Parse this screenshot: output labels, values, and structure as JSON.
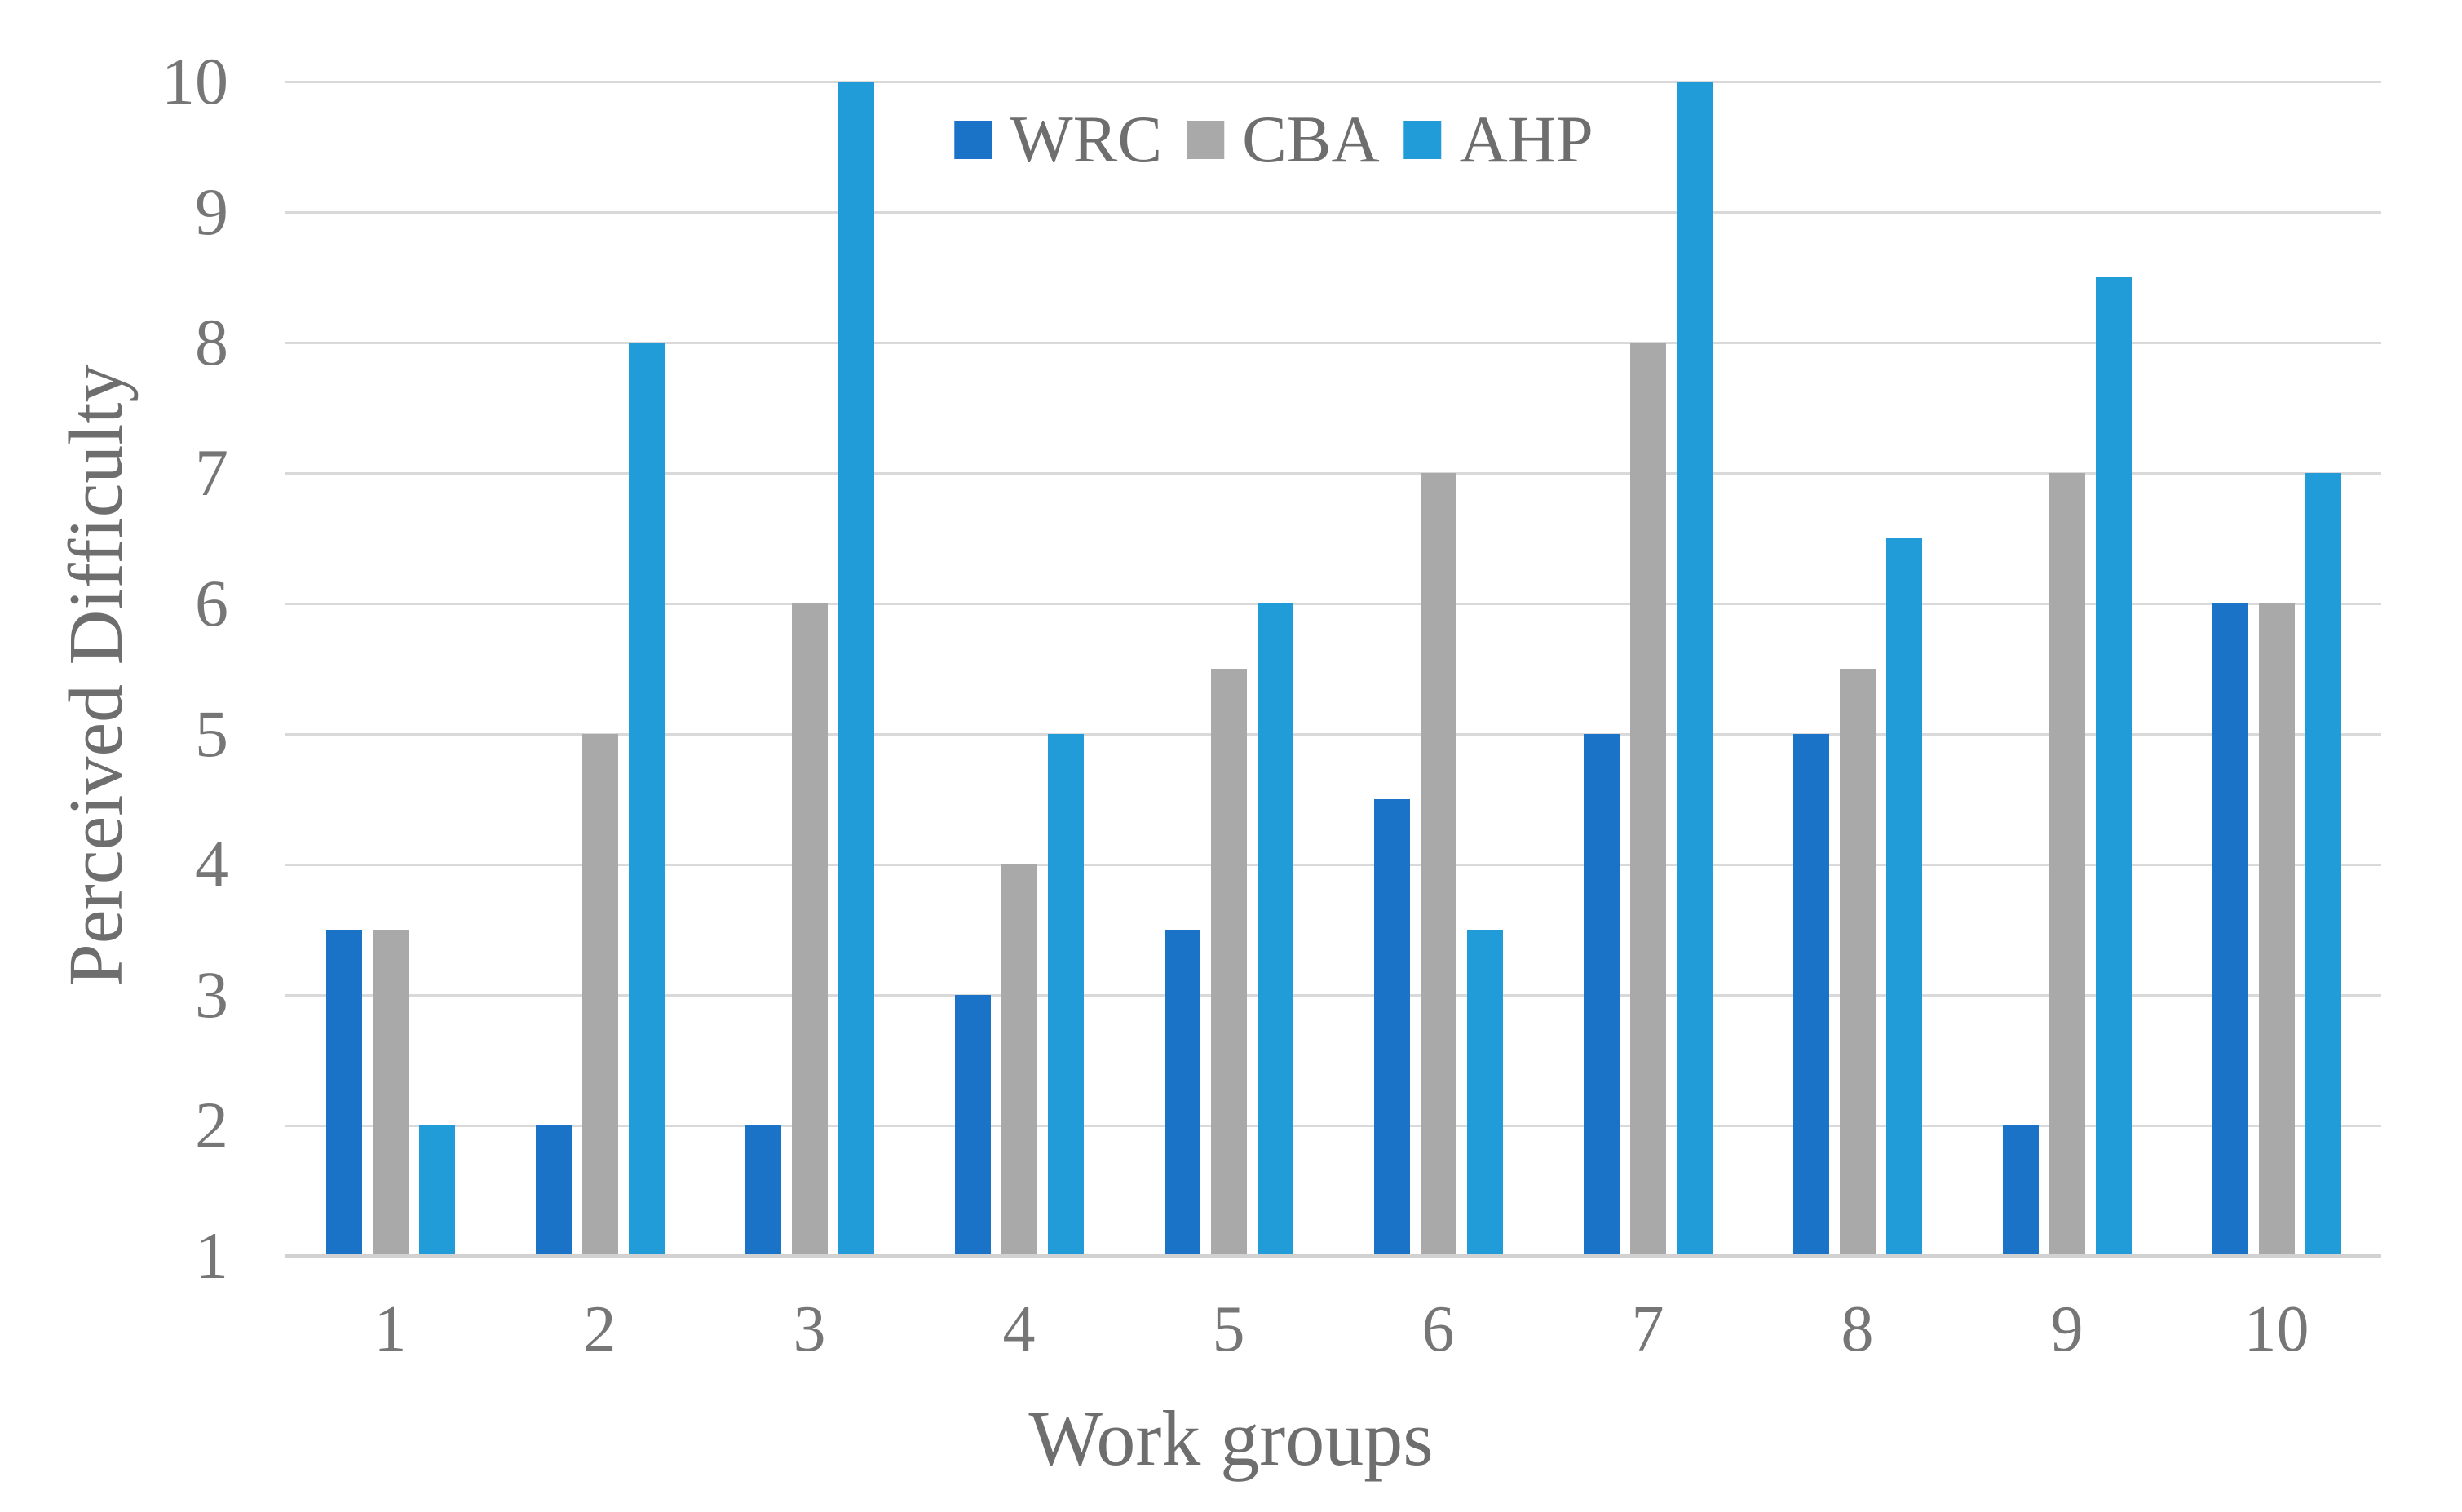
{
  "chart_data": {
    "type": "bar",
    "title": "",
    "categories": [
      "1",
      "2",
      "3",
      "4",
      "5",
      "6",
      "7",
      "8",
      "9",
      "10"
    ],
    "series": [
      {
        "name": "WRC",
        "color": "#1B73C8",
        "values": [
          3.5,
          2,
          2,
          3,
          3.5,
          4.5,
          5,
          5,
          2,
          6
        ]
      },
      {
        "name": "CBA",
        "color": "#A9A9A9",
        "values": [
          3.5,
          5,
          6,
          4,
          5.5,
          7,
          8,
          5.5,
          7,
          6
        ]
      },
      {
        "name": "AHP",
        "color": "#219CD8",
        "values": [
          2,
          8,
          10,
          5,
          6,
          3.5,
          10,
          6.5,
          8.5,
          7
        ]
      }
    ],
    "xlabel": "Work groups",
    "ylabel": "Perceived Difficulty",
    "ylim": [
      1,
      10
    ],
    "yticks": [
      10,
      9,
      8,
      7,
      6,
      5,
      4,
      3,
      2,
      1
    ],
    "grid": true,
    "legend_position": "top-center",
    "gridline_color": "#D9D9D9",
    "axis_line_color": "#D2D2D2",
    "tick_text_color": "#767676",
    "title_text_color": "#6E6E6E"
  }
}
